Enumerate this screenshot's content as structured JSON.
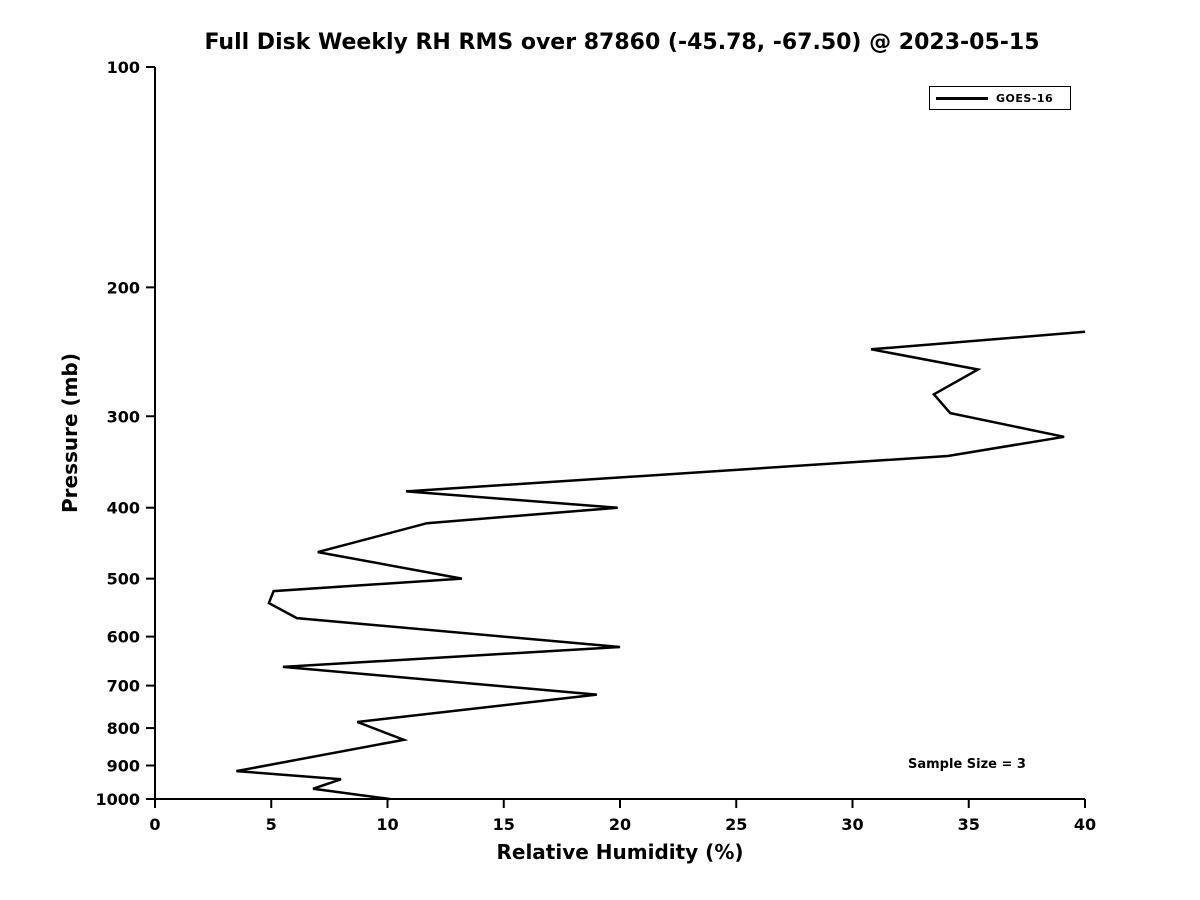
{
  "chart_data": {
    "type": "line",
    "title": "Full Disk Weekly RH RMS over 87860 (-45.78, -67.50) @ 2023-05-15",
    "xlabel": "Relative Humidity (%)",
    "ylabel": "Pressure (mb)",
    "xlim": [
      0,
      40
    ],
    "ylim": [
      1000,
      100
    ],
    "yscale": "log",
    "xticks": [
      0,
      5,
      10,
      15,
      20,
      25,
      30,
      35,
      40
    ],
    "yticks": [
      100,
      200,
      300,
      400,
      500,
      600,
      700,
      800,
      900,
      1000
    ],
    "grid": false,
    "line_color": "#000000",
    "line_width": 2.5,
    "legend": {
      "position": "upper right",
      "entries": [
        {
          "label": "GOES-16",
          "color": "#000000"
        }
      ]
    },
    "annotation": "Sample Size = 3",
    "series": [
      {
        "name": "GOES-16",
        "color": "#000000",
        "points_rh_pressure": [
          [
            40.0,
            230
          ],
          [
            30.8,
            243
          ],
          [
            35.4,
            259
          ],
          [
            33.5,
            280
          ],
          [
            34.2,
            297
          ],
          [
            39.1,
            320
          ],
          [
            34.1,
            340
          ],
          [
            10.8,
            380
          ],
          [
            19.9,
            400
          ],
          [
            11.7,
            420
          ],
          [
            7.0,
            460
          ],
          [
            13.2,
            500
          ],
          [
            5.1,
            520
          ],
          [
            4.9,
            540
          ],
          [
            6.1,
            566
          ],
          [
            20.0,
            620
          ],
          [
            5.5,
            660
          ],
          [
            19.0,
            720
          ],
          [
            8.7,
            785
          ],
          [
            10.7,
            830
          ],
          [
            3.5,
            916
          ],
          [
            8.0,
            940
          ],
          [
            6.8,
            968
          ],
          [
            10.1,
            1000
          ]
        ]
      }
    ]
  }
}
